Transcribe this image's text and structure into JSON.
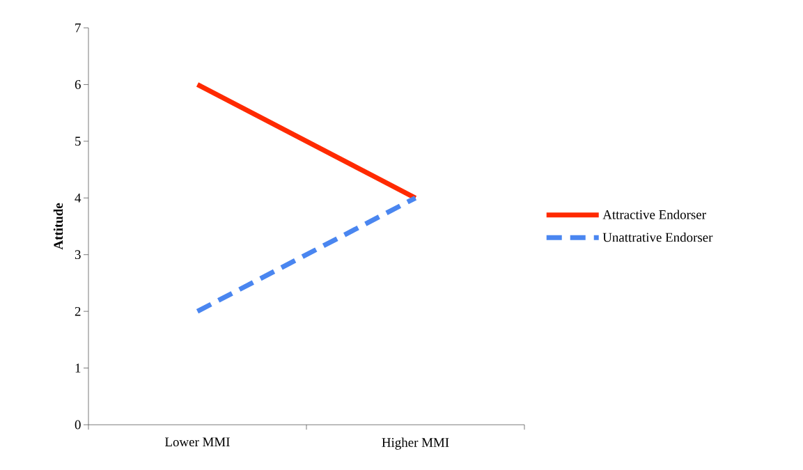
{
  "chart_data": {
    "type": "line",
    "ylabel": "Attitude",
    "categories": [
      "Lower MMI",
      "Higher MMI"
    ],
    "series": [
      {
        "name": "Attractive Endorser",
        "color": "#ff2a00",
        "values": [
          6,
          4
        ],
        "line_style": "solid"
      },
      {
        "name": "Unattrative Endorser",
        "color": "#4a86f0",
        "values": [
          2,
          4
        ],
        "line_style": "dashed"
      }
    ],
    "ylim": [
      0,
      7
    ],
    "yticks": [
      0,
      1,
      2,
      3,
      4,
      5,
      6,
      7
    ],
    "grid": false,
    "legend": "right",
    "marker": "none"
  }
}
